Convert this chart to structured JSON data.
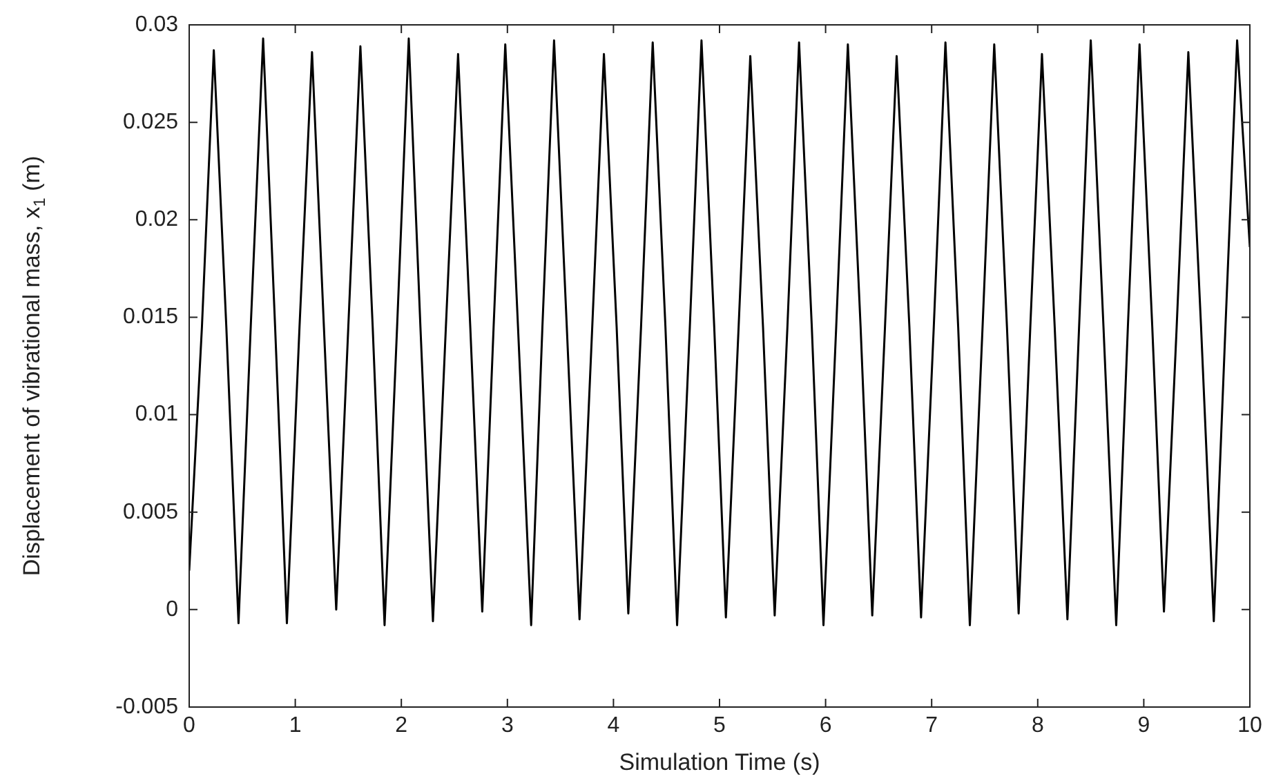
{
  "chart_data": {
    "type": "line",
    "xlabel": "Simulation Time (s)",
    "ylabel": "Displacement of vibrational mass, x$_{1}$ (m)",
    "xlim": [
      0,
      10
    ],
    "xticks": [
      0,
      1,
      2,
      3,
      4,
      5,
      6,
      7,
      8,
      9,
      10
    ],
    "ylim": [
      -0.005,
      0.03
    ],
    "yticks": [
      -0.005,
      0,
      0.005,
      0.01,
      0.015,
      0.02,
      0.025,
      0.03
    ],
    "grid": false,
    "legend": false,
    "marker": "none",
    "line_style": "solid",
    "series": [
      {
        "color": "#000000",
        "x": [
          0,
          0.12,
          0.232,
          0.35,
          0.465,
          0.58,
          0.697,
          0.81,
          0.921,
          1.04,
          1.158,
          1.27,
          1.386,
          1.5,
          1.614,
          1.73,
          1.842,
          1.96,
          2.07,
          2.18,
          2.298,
          2.42,
          2.535,
          2.65,
          2.763,
          2.87,
          2.98,
          3.1,
          3.224,
          3.33,
          3.44,
          3.56,
          3.68,
          3.8,
          3.91,
          4.03,
          4.14,
          4.26,
          4.37,
          4.49,
          4.6,
          4.72,
          4.83,
          4.95,
          5.06,
          5.18,
          5.29,
          5.41,
          5.52,
          5.64,
          5.75,
          5.87,
          5.98,
          6.1,
          6.21,
          6.33,
          6.44,
          6.56,
          6.67,
          6.79,
          6.9,
          7.02,
          7.13,
          7.25,
          7.36,
          7.48,
          7.59,
          7.71,
          7.82,
          7.93,
          8.04,
          8.16,
          8.28,
          8.39,
          8.5,
          8.62,
          8.74,
          8.85,
          8.96,
          9.08,
          9.19,
          9.31,
          9.42,
          9.54,
          9.66,
          9.77,
          9.88,
          10
        ],
        "values": [
          0.002,
          0.0145,
          0.0287,
          0.0145,
          -0.0007,
          0.0145,
          0.0293,
          0.0145,
          -0.0007,
          0.0145,
          0.0286,
          0.0145,
          0,
          0.0145,
          0.0289,
          0.0145,
          -0.0008,
          0.0145,
          0.0293,
          0.0145,
          -0.0006,
          0.0145,
          0.0285,
          0.0145,
          -0.0001,
          0.0145,
          0.029,
          0.0145,
          -0.0008,
          0.0145,
          0.0292,
          0.0145,
          -0.0005,
          0.0145,
          0.0285,
          0.0145,
          -0.0002,
          0.0145,
          0.0291,
          0.0145,
          -0.0008,
          0.0145,
          0.0292,
          0.0145,
          -0.0004,
          0.0145,
          0.0284,
          0.0145,
          -0.0003,
          0.0145,
          0.0291,
          0.0145,
          -0.0008,
          0.0145,
          0.029,
          0.0145,
          -0.0003,
          0.0145,
          0.0284,
          0.0145,
          -0.0004,
          0.0145,
          0.0291,
          0.0145,
          -0.0008,
          0.0145,
          0.029,
          0.0145,
          -0.0002,
          0.0145,
          0.0285,
          0.0145,
          -0.0005,
          0.0145,
          0.0292,
          0.0145,
          -0.0008,
          0.0145,
          0.029,
          0.0145,
          -0.0001,
          0.0145,
          0.0286,
          0.0145,
          -0.0006,
          0.0145,
          0.0292,
          0.0186
        ]
      }
    ]
  }
}
